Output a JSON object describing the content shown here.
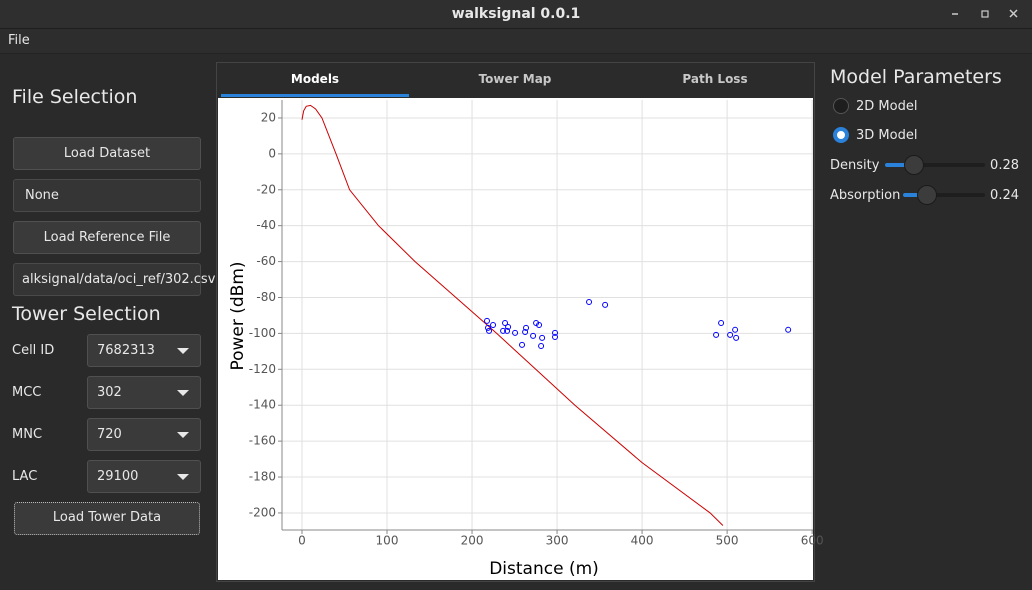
{
  "window": {
    "title": "walksignal 0.0.1"
  },
  "menu": [
    "File"
  ],
  "file_selection": {
    "heading": "File Selection",
    "load_dataset": "Load Dataset",
    "dataset_path": "None",
    "load_reference": "Load Reference File",
    "reference_path": "alksignal/data/oci_ref/302.csv"
  },
  "tower_selection": {
    "heading": "Tower Selection",
    "fields": [
      {
        "label": "Cell ID",
        "value": "7682313"
      },
      {
        "label": "MCC",
        "value": "302"
      },
      {
        "label": "MNC",
        "value": "720"
      },
      {
        "label": "LAC",
        "value": "29100"
      }
    ],
    "load_tower": "Load Tower Data"
  },
  "tabs": [
    "Models",
    "Tower Map",
    "Path Loss"
  ],
  "model_parameters": {
    "heading": "Model Parameters",
    "models": [
      "2D Model",
      "3D Model"
    ],
    "sliders": [
      {
        "label": "Density",
        "value": "0.28"
      },
      {
        "label": "Absorption",
        "value": "0.24"
      }
    ]
  },
  "chart_data": {
    "type": "scatter",
    "xlabel": "Distance (m)",
    "ylabel": "Power (dBm)",
    "grid": true,
    "xlim": [
      -23.5,
      601
    ],
    "ylim": [
      -209.5,
      30
    ],
    "xticks": [
      0,
      100,
      200,
      300,
      400,
      500,
      600
    ],
    "yticks": [
      20,
      0,
      -20,
      -40,
      -60,
      -80,
      -100,
      -120,
      -140,
      -160,
      -180,
      -200
    ],
    "series": [
      {
        "type": "line",
        "color": "#cc0000",
        "x": [
          0,
          2,
          5,
          10,
          16,
          23.5,
          40,
          56,
          90,
          133,
          229,
          321,
          400,
          480,
          495
        ],
        "values": [
          19,
          24,
          26.5,
          27,
          25,
          20,
          0,
          -20,
          -40,
          -60,
          -100,
          -140,
          -172,
          -200,
          -207
        ]
      },
      {
        "type": "scatter",
        "color": "#0000ff",
        "x": [
          217.6,
          218.8,
          220,
          224.7,
          236.5,
          238.8,
          241.2,
          242.4,
          250.6,
          258.8,
          262.4,
          263.5,
          271.8,
          275.3,
          278.8,
          281.2,
          282.4,
          297.6,
          297.6,
          337.6,
          356.5,
          487,
          492.9,
          503.5,
          509.4,
          510.6,
          571.8
        ],
        "values": [
          -93,
          -96.9,
          -98.6,
          -95.3,
          -98.6,
          -94.2,
          -98.6,
          -96.4,
          -99.7,
          -106.4,
          -99.2,
          -96.9,
          -101.4,
          -94.2,
          -95.3,
          -107,
          -102.5,
          -99.7,
          -102,
          -82.5,
          -84.1,
          -100.8,
          -94.2,
          -100.8,
          -98,
          -102.5,
          -98
        ]
      }
    ]
  }
}
